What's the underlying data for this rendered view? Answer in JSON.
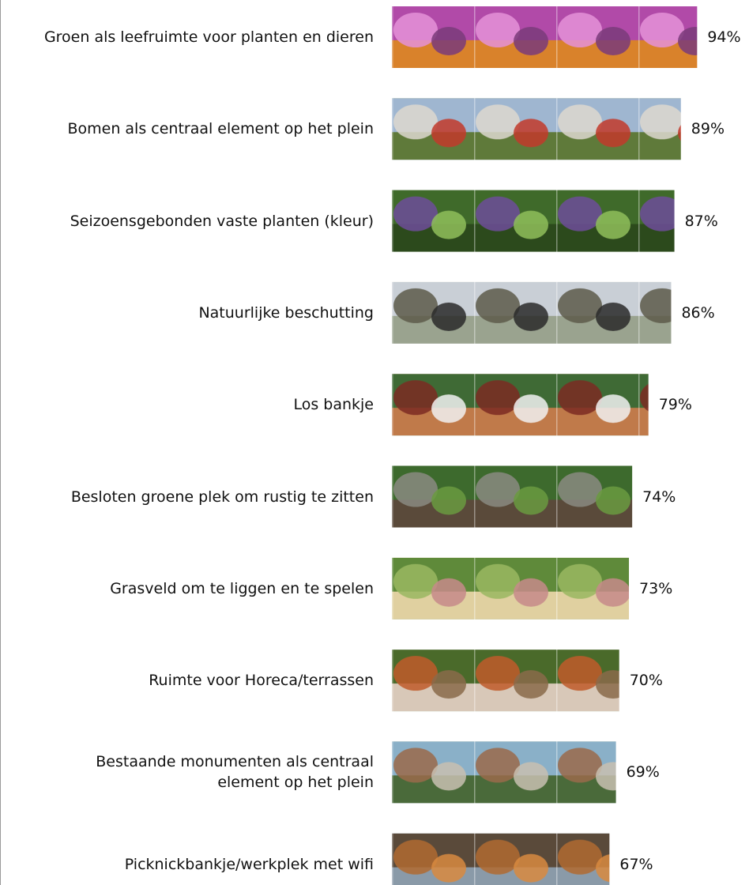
{
  "chart_data": {
    "type": "bar",
    "orientation": "horizontal",
    "categories": [
      "Groen als leefruimte voor planten en dieren",
      "Bomen als centraal element op het plein",
      "Seizoensgebonden vaste planten (kleur)",
      "Natuurlijke beschutting",
      "Los bankje",
      "Besloten groene plek om rustig te zitten",
      "Grasveld om te liggen en te spelen",
      "Ruimte voor Horeca/terrassen",
      "Bestaande monumenten als centraal\nelement op het plein",
      "Picknickbankje/werkplek met wifi"
    ],
    "values": [
      94,
      89,
      87,
      86,
      79,
      74,
      73,
      70,
      69,
      67
    ],
    "value_labels": [
      "94%",
      "89%",
      "87%",
      "86%",
      "79%",
      "74%",
      "73%",
      "70%",
      "69%",
      "67%"
    ]
  }
}
